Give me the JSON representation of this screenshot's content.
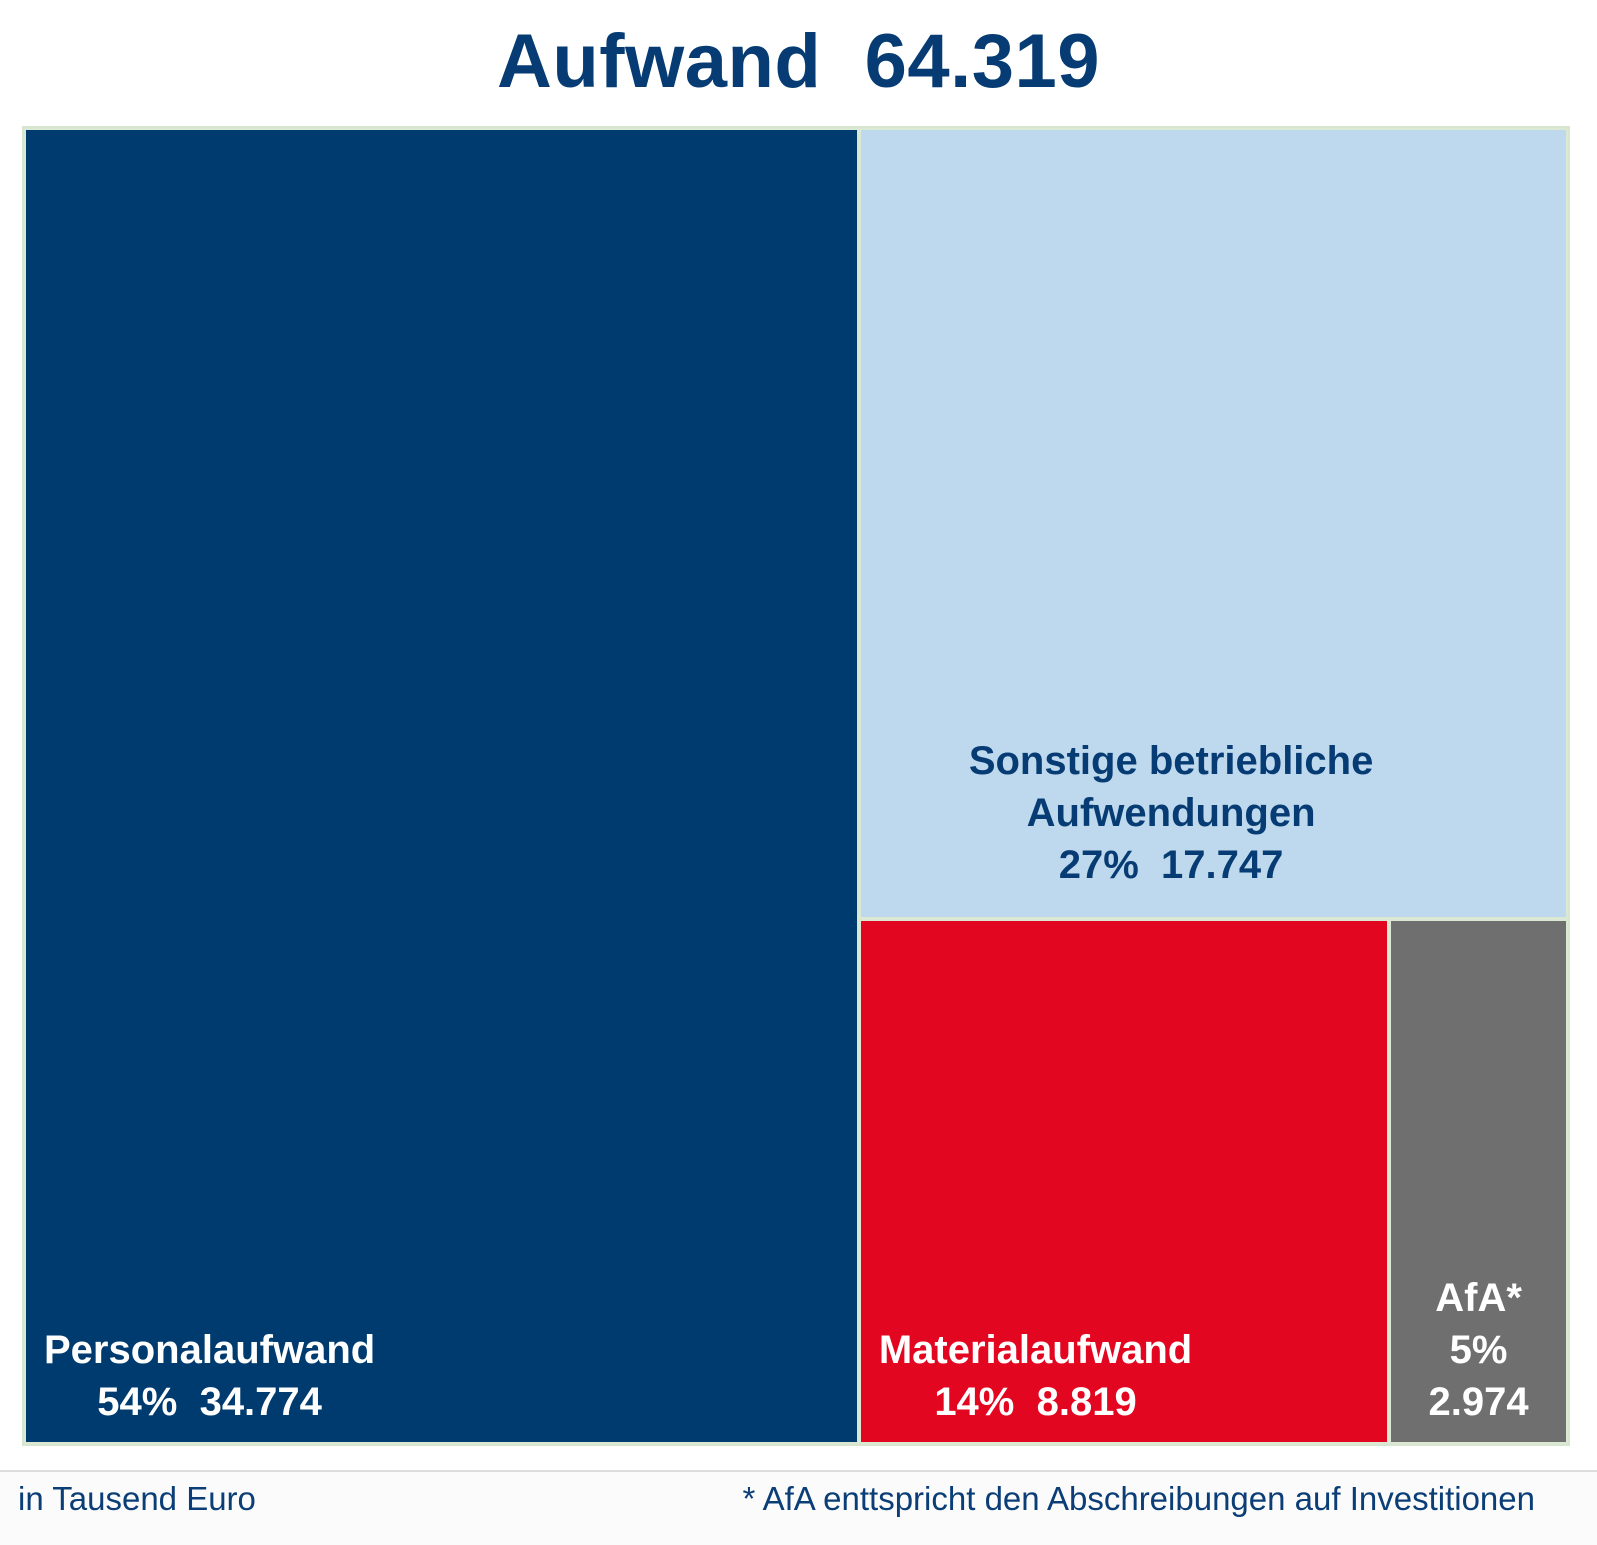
{
  "chart_data": {
    "type": "treemap",
    "title": "Aufwand  64.319",
    "total": 64319,
    "unit_note": "in Tausend Euro",
    "footnote": "* AfA enttspricht den Abschreibungen auf Investitionen",
    "items": [
      {
        "name": "Personalaufwand",
        "label_lines": [
          "Personalaufwand",
          "54%  34.774"
        ],
        "percent": "54%",
        "value": 34774,
        "value_label": "34.774",
        "color": "#003b6f",
        "text_color": "#ffffff"
      },
      {
        "name": "Sonstige betriebliche Aufwendungen",
        "label_lines": [
          "Sonstige betriebliche",
          "Aufwendungen",
          "27%  17.747"
        ],
        "percent": "27%",
        "value": 17747,
        "value_label": "17.747",
        "color": "#bed8ed",
        "text_color": "#063c73"
      },
      {
        "name": "Materialaufwand",
        "label_lines": [
          "Materialaufwand",
          "14%  8.819"
        ],
        "percent": "14%",
        "value": 8819,
        "value_label": "8.819",
        "color": "#e20620",
        "text_color": "#ffffff"
      },
      {
        "name": "AfA*",
        "label_lines": [
          "AfA*",
          "5%",
          "2.974"
        ],
        "percent": "5%",
        "value": 2974,
        "value_label": "2.974",
        "color": "#6f6f6f",
        "text_color": "#ffffff"
      }
    ],
    "tile_border_color": "#dbe8d3"
  }
}
